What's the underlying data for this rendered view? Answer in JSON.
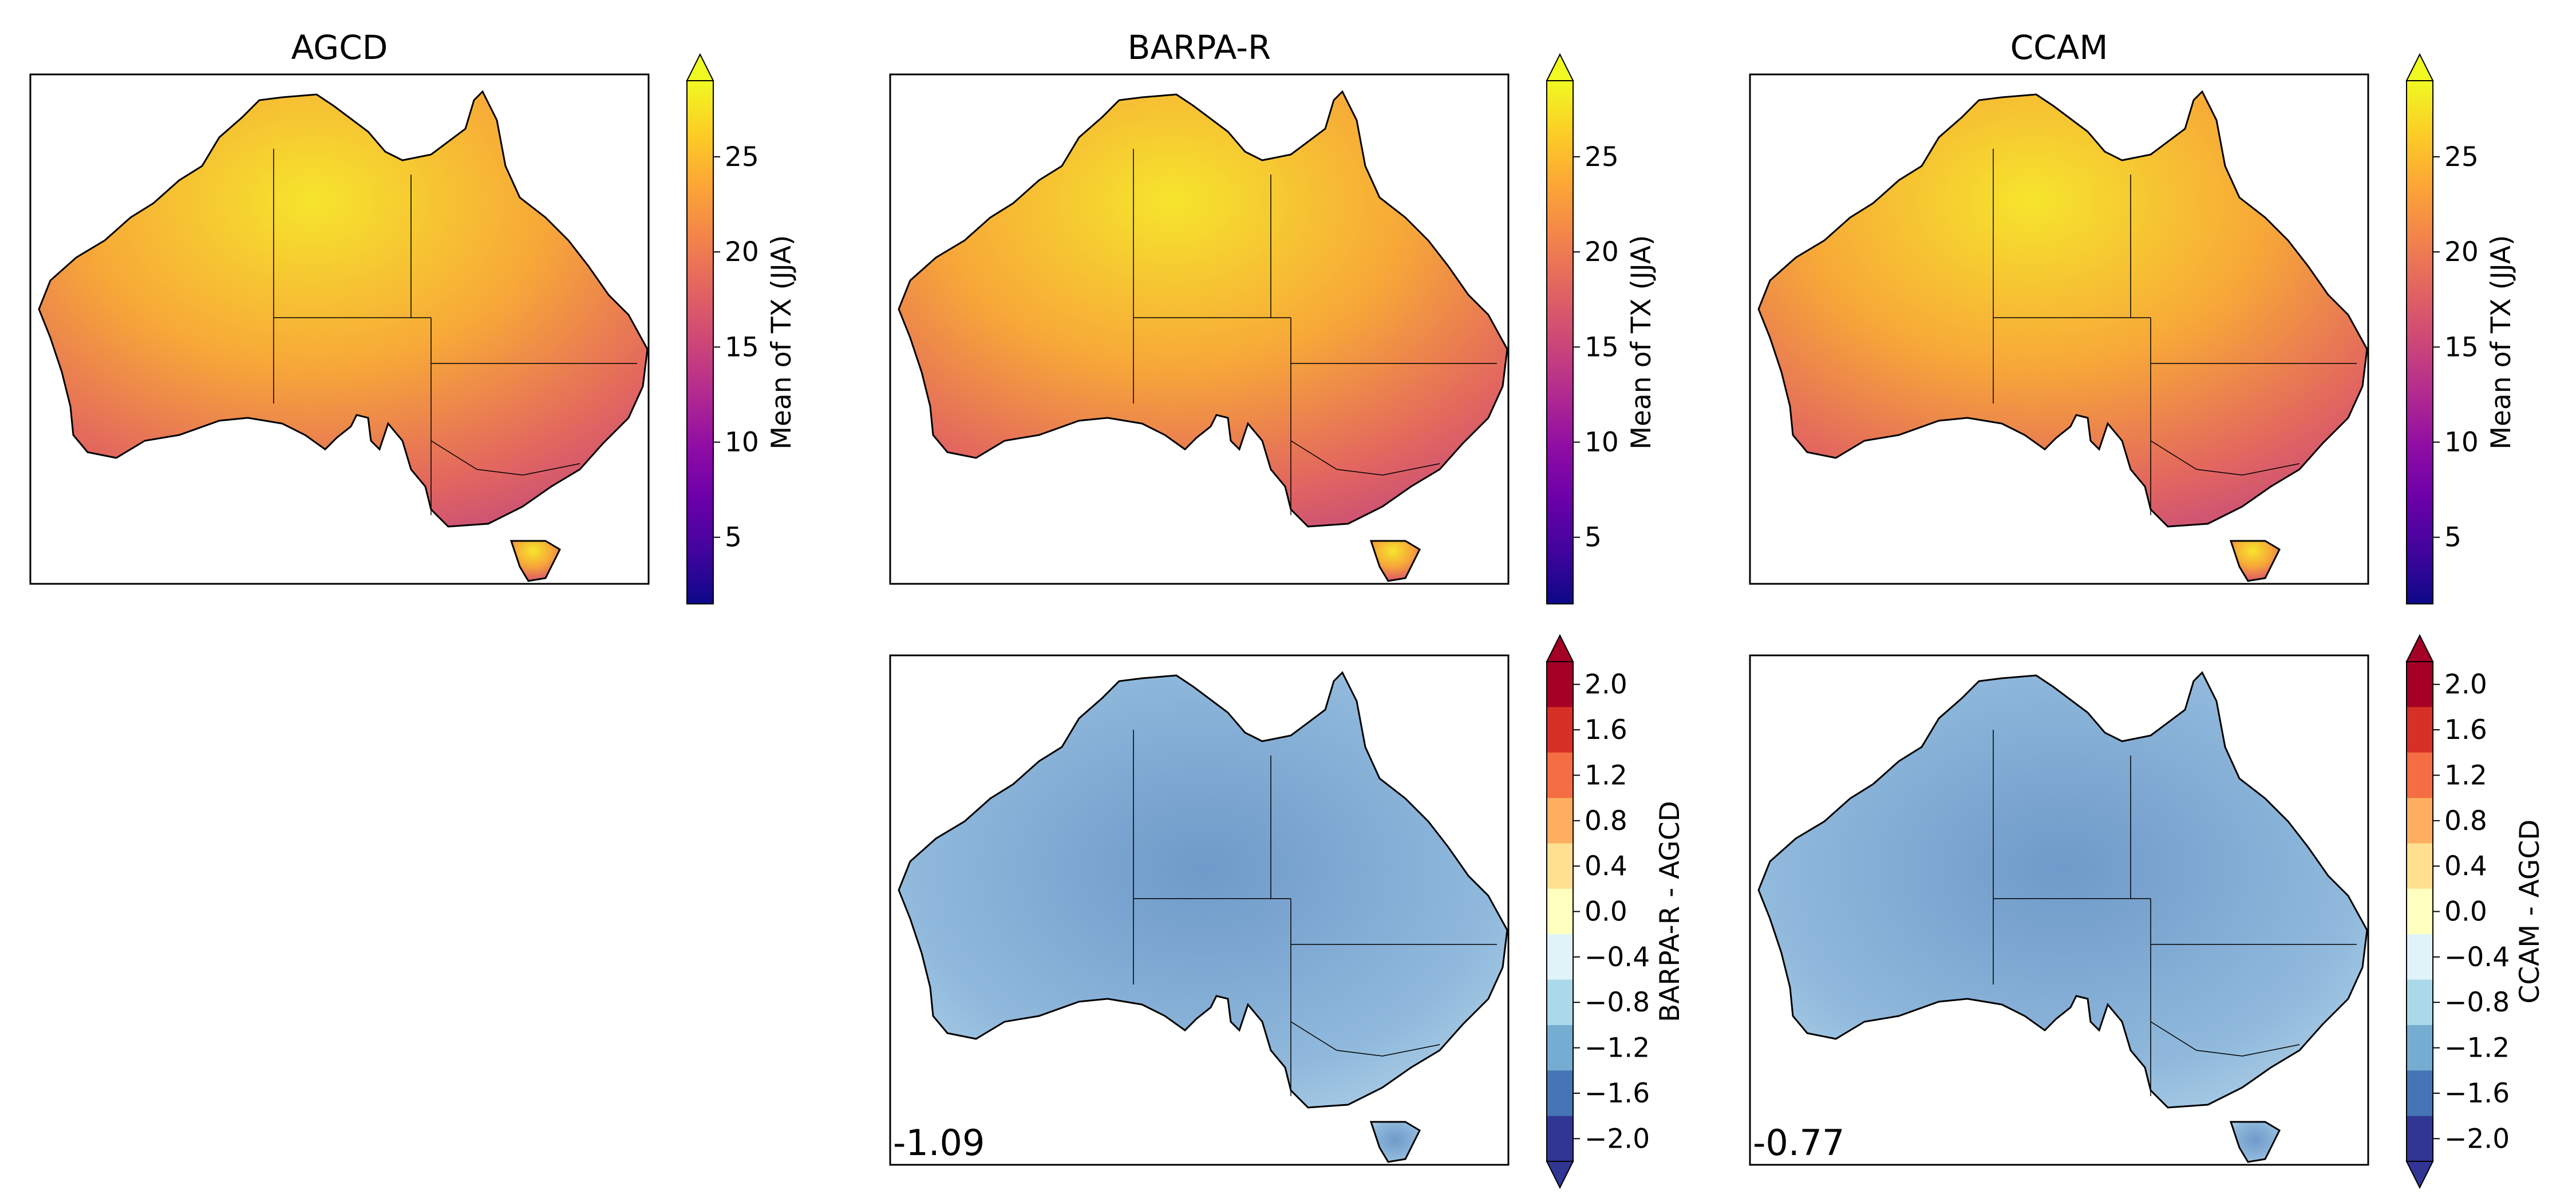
{
  "panels": [
    {
      "id": "agcd",
      "title": "AGCD",
      "kind": "abs",
      "colorbar_label": "Mean of TX (JJA)"
    },
    {
      "id": "barpa",
      "title": "BARPA-R",
      "kind": "abs",
      "colorbar_label": "Mean of TX (JJA)"
    },
    {
      "id": "ccam",
      "title": "CCAM",
      "kind": "abs",
      "colorbar_label": "Mean of TX (JJA)"
    },
    {
      "id": "barpa-diff",
      "title": "",
      "kind": "diff",
      "colorbar_label": "BARPA-R - AGCD",
      "stat": "-1.09"
    },
    {
      "id": "ccam-diff",
      "title": "",
      "kind": "diff",
      "colorbar_label": "CCAM - AGCD",
      "stat": "-0.77"
    }
  ],
  "colorbar_abs": {
    "colormap": "plasma",
    "range": [
      1.5,
      29
    ],
    "extend": "max",
    "ticks": [
      "5",
      "10",
      "15",
      "20",
      "25"
    ],
    "tick_values": [
      5,
      10,
      15,
      20,
      25
    ],
    "stops": [
      "#0d0887",
      "#41049d",
      "#6a00a8",
      "#8f0da4",
      "#b12a90",
      "#cc4778",
      "#e16462",
      "#f2844b",
      "#fca636",
      "#fcce25",
      "#f0f921"
    ]
  },
  "colorbar_diff": {
    "colormap": "RdYlBu_r",
    "extend": "both",
    "ticks": [
      "2.0",
      "1.6",
      "1.2",
      "0.8",
      "0.4",
      "0.0",
      "−0.4",
      "−0.8",
      "−1.2",
      "−1.6",
      "−2.0"
    ],
    "bins_top_to_bottom": [
      "#a50026",
      "#d73027",
      "#f46d43",
      "#fdae61",
      "#fee090",
      "#ffffbf",
      "#e0f3f8",
      "#abd9e9",
      "#74add1",
      "#4575b4",
      "#313695"
    ],
    "end_high": "#a50026",
    "end_low": "#313695"
  },
  "land_color_abs": "#f3953f",
  "land_color_diff": "#a3c4e0"
}
